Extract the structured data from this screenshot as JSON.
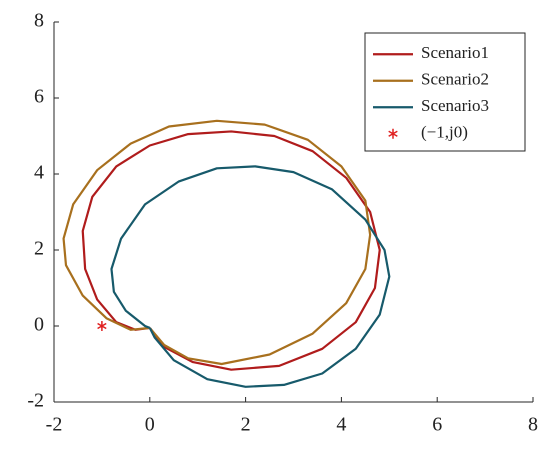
{
  "chart_data": {
    "type": "line",
    "xlim": [
      -2,
      8
    ],
    "ylim": [
      -2,
      8
    ],
    "xticks": [
      -2,
      0,
      2,
      4,
      6,
      8
    ],
    "yticks": [
      -2,
      0,
      2,
      4,
      6,
      8
    ],
    "grid": false,
    "legend": "upper right",
    "series": [
      {
        "name": "Scenario1",
        "color": "#b01c1c",
        "x": [
          0,
          -0.3,
          -0.7,
          -1.1,
          -1.35,
          -1.4,
          -1.2,
          -0.7,
          0,
          0.8,
          1.7,
          2.6,
          3.4,
          4.1,
          4.6,
          4.8,
          4.7,
          4.3,
          3.6,
          2.7,
          1.7,
          0.9,
          0.3,
          0
        ],
        "values": [
          -0.05,
          -0.1,
          0.1,
          0.7,
          1.5,
          2.5,
          3.4,
          4.2,
          4.75,
          5.05,
          5.12,
          5.0,
          4.6,
          3.9,
          3.0,
          2.0,
          1.0,
          0.1,
          -0.6,
          -1.05,
          -1.15,
          -0.95,
          -0.55,
          -0.05
        ]
      },
      {
        "name": "Scenario2",
        "color": "#a8701e",
        "x": [
          0,
          -0.4,
          -0.9,
          -1.4,
          -1.75,
          -1.8,
          -1.6,
          -1.1,
          -0.4,
          0.4,
          1.4,
          2.4,
          3.3,
          4.0,
          4.5,
          4.6,
          4.5,
          4.1,
          3.4,
          2.5,
          1.5,
          0.8,
          0.3,
          0
        ],
        "values": [
          -0.05,
          -0.1,
          0.2,
          0.8,
          1.6,
          2.3,
          3.2,
          4.1,
          4.8,
          5.25,
          5.4,
          5.3,
          4.9,
          4.2,
          3.3,
          2.4,
          1.5,
          0.6,
          -0.2,
          -0.75,
          -1.0,
          -0.85,
          -0.5,
          -0.05
        ]
      },
      {
        "name": "Scenario3",
        "color": "#175a6b",
        "x": [
          0,
          -0.1,
          -0.5,
          -0.75,
          -0.8,
          -0.6,
          -0.1,
          0.6,
          1.4,
          2.2,
          3.0,
          3.8,
          4.5,
          4.9,
          5.0,
          4.8,
          4.3,
          3.6,
          2.8,
          2.0,
          1.2,
          0.5,
          0.1,
          0
        ],
        "values": [
          -0.05,
          0,
          0.4,
          0.9,
          1.5,
          2.3,
          3.2,
          3.8,
          4.15,
          4.2,
          4.05,
          3.6,
          2.8,
          2.0,
          1.3,
          0.3,
          -0.6,
          -1.25,
          -1.55,
          -1.6,
          -1.4,
          -0.9,
          -0.3,
          -0.05
        ]
      },
      {
        "name": "(−1,j0)",
        "color": "#e02020",
        "marker": "asterisk",
        "x": [
          -1
        ],
        "values": [
          0
        ]
      }
    ]
  }
}
